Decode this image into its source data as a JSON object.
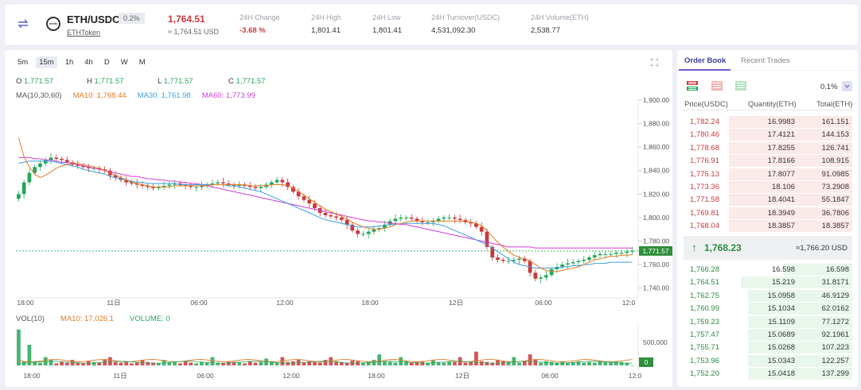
{
  "header": {
    "pair": "ETH/USDC",
    "change_badge": "0.2%",
    "token_link": "ETHToken",
    "logo_text": "metis",
    "last_price": "1,764.51",
    "last_price_usd": "≈ 1,764.51 USD",
    "stats": [
      {
        "label": "24H Change",
        "value": "-3.68 %",
        "red": true
      },
      {
        "label": "24H High",
        "value": "1,801.41"
      },
      {
        "label": "24H Low",
        "value": "1,801.41"
      },
      {
        "label": "24H Turnover(USDC)",
        "value": "4,531,092.30"
      },
      {
        "label": "24H Volume(ETH)",
        "value": "2,538.77"
      }
    ]
  },
  "chart": {
    "timeframes": [
      "5m",
      "15m",
      "1h",
      "4h",
      "D",
      "W",
      "M"
    ],
    "active_timeframe": "15m",
    "ohlc": [
      {
        "k": "O",
        "v": "1,771.57"
      },
      {
        "k": "H",
        "v": "1,771.57"
      },
      {
        "k": "L",
        "v": "1,771.57"
      },
      {
        "k": "C",
        "v": "1,771.57"
      }
    ],
    "ma_labels": [
      {
        "text": "MA(10,30,60)",
        "color": "#555555"
      },
      {
        "text": "MA10: 1,768.44",
        "color": "#e07b22"
      },
      {
        "text": "MA30: 1,761.98",
        "color": "#3b9ee0"
      },
      {
        "text": "MA60: 1,773.99",
        "color": "#d33fd3"
      }
    ],
    "vol_labels": [
      {
        "text": "VOL(10)",
        "color": "#555555"
      },
      {
        "text": "MA10: 17,026.1",
        "color": "#e07b22"
      },
      {
        "text": "VOLUME: 0",
        "color": "#26a65b"
      }
    ],
    "last_price_tag": "1,771.57",
    "vol_last_tag": "0",
    "vol_axis_label": "500,000",
    "colors": {
      "up": "#26a65b",
      "down": "#c9383b",
      "ma10": "#e07b22",
      "ma30": "#3b9ee0",
      "ma60": "#d33fd3"
    }
  },
  "chart_data": {
    "type": "candlestick",
    "y_ticks": [
      1900,
      1880,
      1860,
      1840,
      1820,
      1800,
      1780,
      1760,
      1740
    ],
    "y_tick_labels": [
      "1,900.00",
      "1,880.00",
      "1,860.00",
      "1,840.00",
      "1,820.00",
      "1,800.00",
      "1,780.00",
      "1,760.00",
      "1,740.00"
    ],
    "ylim": [
      1733,
      1902
    ],
    "x_ticks": [
      "18:00",
      "11日",
      "06:00",
      "12:00",
      "18:00",
      "12日",
      "06:00",
      "12:0"
    ],
    "close": [
      1820,
      1830,
      1838,
      1843,
      1846,
      1849,
      1851,
      1850,
      1849,
      1847,
      1845,
      1844,
      1843,
      1842,
      1842,
      1841,
      1840,
      1836,
      1834,
      1832,
      1830,
      1829,
      1828,
      1827,
      1826,
      1825,
      1826,
      1827,
      1828,
      1829,
      1828,
      1827,
      1826,
      1826,
      1827,
      1828,
      1829,
      1830,
      1829,
      1828,
      1827,
      1828,
      1827,
      1826,
      1825,
      1826,
      1828,
      1830,
      1832,
      1830,
      1826,
      1822,
      1818,
      1815,
      1812,
      1808,
      1804,
      1802,
      1801,
      1800,
      1798,
      1794,
      1789,
      1786,
      1786,
      1788,
      1790,
      1791,
      1794,
      1797,
      1799,
      1800,
      1800,
      1799,
      1797,
      1796,
      1796,
      1797,
      1799,
      1800,
      1800,
      1799,
      1798,
      1796,
      1795,
      1792,
      1788,
      1775,
      1766,
      1764,
      1763,
      1763,
      1764,
      1765,
      1763,
      1753,
      1748,
      1749,
      1751,
      1756,
      1758,
      1760,
      1761,
      1762,
      1763,
      1764,
      1766,
      1768,
      1769,
      1769,
      1769,
      1770,
      1770,
      1771,
      1771.57
    ],
    "ma10": [
      1868,
      1852,
      1843,
      1837,
      1834,
      1836,
      1839,
      1842,
      1844,
      1845,
      1846,
      1846,
      1845,
      1844,
      1843,
      1842,
      1840,
      1838,
      1836,
      1834,
      1832,
      1830,
      1829,
      1828,
      1827,
      1826,
      1826,
      1826,
      1826,
      1827,
      1827,
      1827,
      1827,
      1827,
      1827,
      1827,
      1828,
      1828,
      1828,
      1828,
      1828,
      1828,
      1828,
      1827,
      1827,
      1827,
      1827,
      1828,
      1828,
      1828,
      1827,
      1825,
      1822,
      1819,
      1816,
      1813,
      1810,
      1807,
      1805,
      1803,
      1801,
      1799,
      1796,
      1794,
      1792,
      1791,
      1790,
      1790,
      1791,
      1792,
      1794,
      1795,
      1796,
      1797,
      1797,
      1797,
      1797,
      1797,
      1797,
      1797,
      1797,
      1797,
      1797,
      1797,
      1796,
      1795,
      1793,
      1789,
      1784,
      1779,
      1775,
      1771,
      1768,
      1766,
      1765,
      1763,
      1760,
      1757,
      1755,
      1754,
      1754,
      1755,
      1756,
      1757,
      1758,
      1760,
      1762,
      1764,
      1765,
      1766,
      1767,
      1767,
      1768,
      1768,
      1768.44
    ],
    "ma30": [
      1846,
      1847,
      1848,
      1848,
      1848,
      1848,
      1848,
      1847,
      1846,
      1845,
      1844,
      1843,
      1841,
      1840,
      1839,
      1838,
      1837,
      1835,
      1834,
      1833,
      1832,
      1831,
      1830,
      1830,
      1829,
      1829,
      1829,
      1829,
      1829,
      1829,
      1828,
      1828,
      1828,
      1828,
      1828,
      1828,
      1828,
      1828,
      1828,
      1827,
      1827,
      1826,
      1825,
      1824,
      1823,
      1822,
      1820,
      1818,
      1816,
      1814,
      1812,
      1810,
      1808,
      1806,
      1804,
      1802,
      1800,
      1798,
      1797,
      1796,
      1795,
      1794,
      1793,
      1792,
      1792,
      1792,
      1792,
      1793,
      1793,
      1794,
      1794,
      1795,
      1795,
      1795,
      1795,
      1795,
      1795,
      1795,
      1794,
      1793,
      1791,
      1789,
      1787,
      1785,
      1783,
      1781,
      1779,
      1777,
      1774,
      1771,
      1768,
      1765,
      1762,
      1760,
      1759,
      1758,
      1757,
      1757,
      1757,
      1757,
      1757,
      1758,
      1758,
      1759,
      1759,
      1760,
      1760,
      1761,
      1761,
      1761,
      1762,
      1762,
      1762,
      1762,
      1761.98
    ],
    "ma60": [
      1851,
      1851,
      1851,
      1850,
      1850,
      1849,
      1849,
      1848,
      1847,
      1847,
      1846,
      1845,
      1844,
      1843,
      1842,
      1841,
      1840,
      1839,
      1838,
      1837,
      1836,
      1835,
      1835,
      1834,
      1833,
      1833,
      1832,
      1832,
      1831,
      1831,
      1830,
      1830,
      1829,
      1829,
      1828,
      1827,
      1826,
      1825,
      1824,
      1823,
      1822,
      1821,
      1820,
      1819,
      1818,
      1817,
      1816,
      1815,
      1814,
      1813,
      1812,
      1811,
      1810,
      1809,
      1808,
      1807,
      1806,
      1805,
      1804,
      1803,
      1802,
      1801,
      1800,
      1799,
      1798,
      1797,
      1797,
      1796,
      1796,
      1795,
      1795,
      1794,
      1794,
      1793,
      1792,
      1791,
      1790,
      1789,
      1788,
      1787,
      1786,
      1785,
      1784,
      1783,
      1782,
      1781,
      1780,
      1779,
      1778,
      1777,
      1776,
      1775,
      1775,
      1775,
      1775,
      1775,
      1774,
      1774,
      1774,
      1774,
      1774,
      1774,
      1774,
      1774,
      1774,
      1774,
      1774,
      1774,
      1774,
      1774,
      1774,
      1774,
      1774,
      1774,
      1773.99
    ],
    "volume": [
      260000,
      30000,
      150000,
      30000,
      20000,
      60000,
      40000,
      15000,
      25000,
      20000,
      40000,
      20000,
      15000,
      30000,
      25000,
      20000,
      40000,
      60000,
      25000,
      20000,
      30000,
      15000,
      20000,
      40000,
      25000,
      20000,
      15000,
      40000,
      20000,
      25000,
      15000,
      30000,
      20000,
      15000,
      25000,
      20000,
      60000,
      20000,
      15000,
      30000,
      25000,
      20000,
      15000,
      30000,
      20000,
      25000,
      50000,
      30000,
      20000,
      60000,
      25000,
      30000,
      40000,
      20000,
      30000,
      25000,
      20000,
      40000,
      60000,
      30000,
      25000,
      20000,
      35000,
      30000,
      20000,
      25000,
      40000,
      80000,
      30000,
      25000,
      20000,
      60000,
      30000,
      20000,
      25000,
      30000,
      20000,
      40000,
      25000,
      20000,
      30000,
      25000,
      60000,
      20000,
      25000,
      100000,
      30000,
      25000,
      20000,
      40000,
      30000,
      25000,
      60000,
      20000,
      30000,
      80000,
      40000,
      20000,
      30000,
      25000,
      20000,
      30000,
      20000,
      25000,
      30000,
      20000,
      25000,
      20000,
      30000,
      25000,
      20000,
      30000,
      25000,
      20000,
      0
    ],
    "vol_ma": 17026.1
  },
  "orderbook": {
    "tabs": [
      "Order Book",
      "Recent Trades"
    ],
    "precision": "0.1%",
    "columns": [
      "Price(USDC)",
      "Quantity(ETH)",
      "Total(ETH)"
    ],
    "asks": [
      {
        "price": "1,782.24",
        "qty": "16.9983",
        "total": "161.151",
        "depth": 0.73
      },
      {
        "price": "1,780.46",
        "qty": "17.4121",
        "total": "144.153",
        "depth": 0.73
      },
      {
        "price": "1,778.68",
        "qty": "17.8255",
        "total": "126.741",
        "depth": 0.73
      },
      {
        "price": "1,776.91",
        "qty": "17.8166",
        "total": "108.915",
        "depth": 0.73
      },
      {
        "price": "1,775.13",
        "qty": "17.8077",
        "total": "91.0985",
        "depth": 0.73
      },
      {
        "price": "1,773.36",
        "qty": "18.106",
        "total": "73.2908",
        "depth": 0.73
      },
      {
        "price": "1,771.58",
        "qty": "18.4041",
        "total": "55.1847",
        "depth": 0.73
      },
      {
        "price": "1,769.81",
        "qty": "18.3949",
        "total": "36.7806",
        "depth": 0.73
      },
      {
        "price": "1,768.04",
        "qty": "18.3857",
        "total": "18.3857",
        "depth": 0.73
      }
    ],
    "mid_price": "1,768.23",
    "mid_usd": "≈1,766.20 USD",
    "bids": [
      {
        "price": "1,766.28",
        "qty": "16.598",
        "total": "16.598",
        "depth": 0.41
      },
      {
        "price": "1,764.51",
        "qty": "15.219",
        "total": "31.8171",
        "depth": 0.66
      },
      {
        "price": "1,762.75",
        "qty": "15.0958",
        "total": "46.9129",
        "depth": 0.62
      },
      {
        "price": "1,760.99",
        "qty": "15.1034",
        "total": "62.0162",
        "depth": 0.62
      },
      {
        "price": "1,759.23",
        "qty": "15.1109",
        "total": "77.1272",
        "depth": 0.62
      },
      {
        "price": "1,757.47",
        "qty": "15.0689",
        "total": "92.1961",
        "depth": 0.62
      },
      {
        "price": "1,755.71",
        "qty": "15.0268",
        "total": "107.223",
        "depth": 0.62
      },
      {
        "price": "1,753.96",
        "qty": "15.0343",
        "total": "122.257",
        "depth": 0.62
      },
      {
        "price": "1,752.20",
        "qty": "15.0418",
        "total": "137.299",
        "depth": 0.62
      }
    ]
  }
}
